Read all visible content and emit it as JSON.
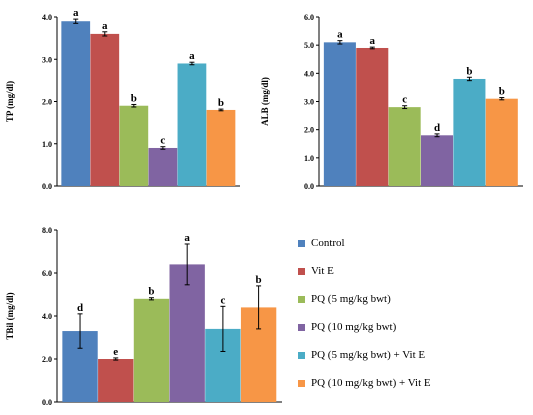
{
  "chart_data": [
    {
      "type": "bar",
      "ylabel": "TP (mg/dl)",
      "ylim": [
        0,
        4
      ],
      "yticks": [
        "0.0",
        "1.0",
        "2.0",
        "3.0",
        "4.0"
      ],
      "values": [
        3.9,
        3.6,
        1.9,
        0.9,
        2.9,
        1.8
      ],
      "errors": [
        0.05,
        0.05,
        0.03,
        0.03,
        0.03,
        0.02
      ],
      "letters": [
        "a",
        "a",
        "b",
        "c",
        "a",
        "b"
      ]
    },
    {
      "type": "bar",
      "ylabel": "ALB (mg/dl)",
      "ylim": [
        0,
        6
      ],
      "yticks": [
        "0.0",
        "1.0",
        "2.0",
        "3.0",
        "4.0",
        "5.0",
        "6.0"
      ],
      "values": [
        5.1,
        4.9,
        2.8,
        1.8,
        3.8,
        3.1
      ],
      "errors": [
        0.06,
        0.03,
        0.05,
        0.05,
        0.06,
        0.04
      ],
      "letters": [
        "a",
        "a",
        "c",
        "d",
        "b",
        "b"
      ]
    },
    {
      "type": "bar",
      "ylabel": "TBil (mg/dl)",
      "ylim": [
        0,
        8
      ],
      "yticks": [
        "0.0",
        "2.0",
        "4.0",
        "6.0",
        "8.0"
      ],
      "values": [
        3.3,
        2.0,
        4.8,
        6.4,
        3.4,
        4.4
      ],
      "errors": [
        0.8,
        0.05,
        0.05,
        0.95,
        1.05,
        1.0
      ],
      "letters": [
        "d",
        "e",
        "b",
        "a",
        "c",
        "b"
      ]
    }
  ],
  "legend": [
    {
      "name": "Control",
      "color": "#4f81bd"
    },
    {
      "name": "Vit E",
      "color": "#c0504d"
    },
    {
      "name": "PQ (5 mg/kg bwt)",
      "color": "#9bbb59"
    },
    {
      "name": "PQ (10 mg/kg bwt)",
      "color": "#8064a2"
    },
    {
      "name": "PQ (5 mg/kg bwt) + Vit E",
      "color": "#4bacc6"
    },
    {
      "name": "PQ (10 mg/kg bwt) + Vit E",
      "color": "#f79646"
    }
  ]
}
